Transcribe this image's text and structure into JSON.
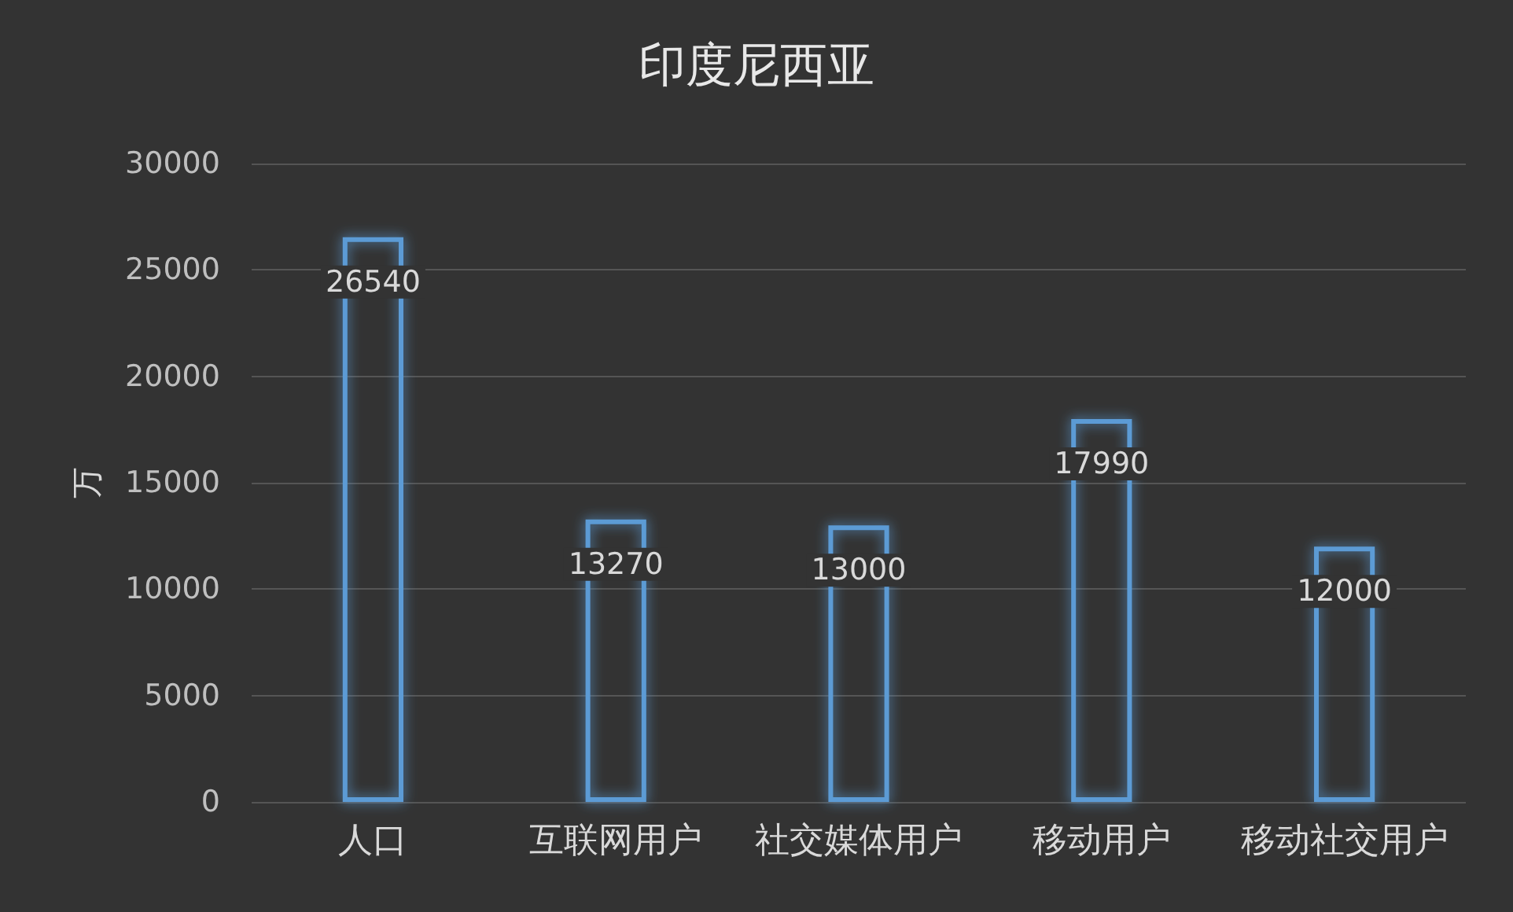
{
  "chart_data": {
    "type": "bar",
    "title": "印度尼西亚",
    "ylabel": "万",
    "categories": [
      "人口",
      "互联网用户",
      "社交媒体用户",
      "移动用户",
      "移动社交用户"
    ],
    "values": [
      26540,
      13270,
      13000,
      17990,
      12000
    ],
    "color": "#5b9bd5",
    "ylim": [
      0,
      30000
    ],
    "yticks": [
      0,
      5000,
      10000,
      15000,
      20000,
      25000,
      30000
    ],
    "grid": true,
    "data_labels": true
  }
}
